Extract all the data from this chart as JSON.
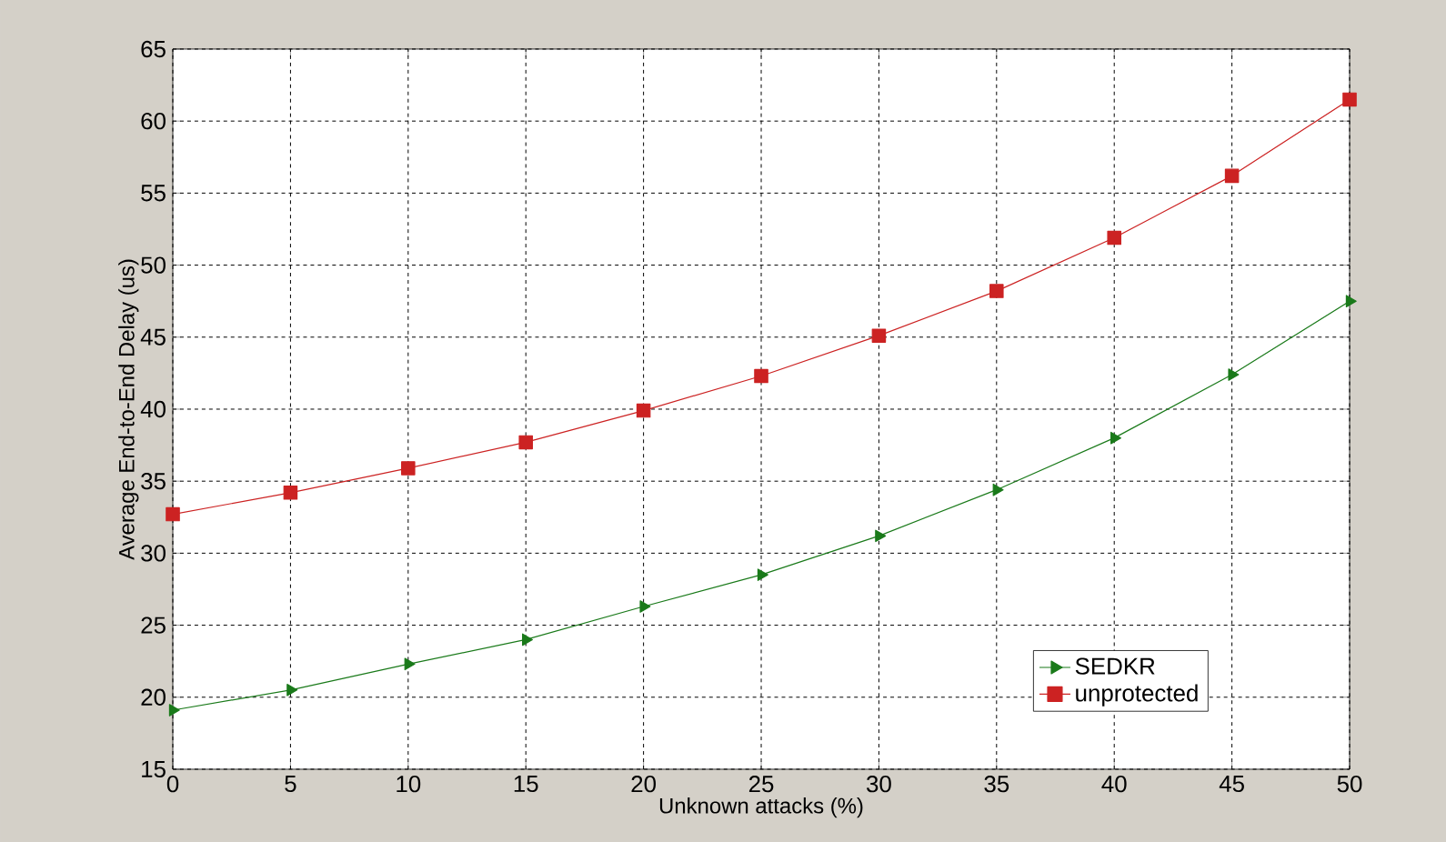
{
  "chart_data": {
    "type": "line",
    "xlabel": "Unknown attacks (%)",
    "ylabel": "Average End-to-End Delay (us)",
    "x": [
      0,
      5,
      10,
      15,
      20,
      25,
      30,
      35,
      40,
      45,
      50
    ],
    "series": [
      {
        "name": "SEDKR",
        "color": "#1a7a1a",
        "marker": "triangle",
        "values": [
          19.1,
          20.5,
          22.3,
          24.0,
          26.3,
          28.5,
          31.2,
          34.4,
          38.0,
          42.4,
          47.5
        ]
      },
      {
        "name": "unprotected",
        "color": "#cc2222",
        "marker": "square",
        "values": [
          32.7,
          34.2,
          35.9,
          37.7,
          39.9,
          42.3,
          45.1,
          48.2,
          51.9,
          56.2,
          61.5
        ]
      }
    ],
    "xlim": [
      0,
      50
    ],
    "xticks": [
      0,
      5,
      10,
      15,
      20,
      25,
      30,
      35,
      40,
      45,
      50
    ],
    "ylim": [
      15,
      65
    ],
    "yticks": [
      15,
      20,
      25,
      30,
      35,
      40,
      45,
      50,
      55,
      60,
      65
    ],
    "grid": true,
    "legend": "bottom right",
    "line_style": "solid"
  }
}
